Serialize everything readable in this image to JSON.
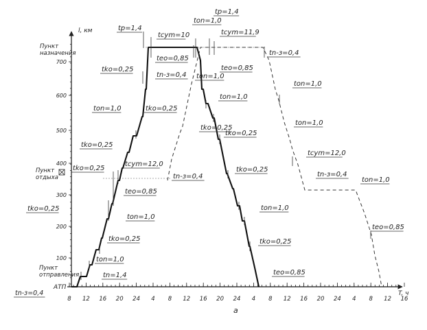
{
  "axes": {
    "y_label": "l, км",
    "x_label": "T, ч",
    "y_ticks": [
      "100",
      "200",
      "300",
      "400",
      "500",
      "600",
      "700"
    ],
    "x_ticks": [
      "8",
      "12",
      "16",
      "20",
      "24",
      "4",
      "8",
      "12",
      "16",
      "20",
      "24",
      "4",
      "8",
      "12",
      "16",
      "20",
      "24",
      "4",
      "8",
      "12",
      "16"
    ]
  },
  "points": {
    "destination": "Пункт назначения",
    "rest": "Пункт отдыха",
    "departure": "Пункт отправления",
    "atp": "АТП"
  },
  "figure_label": "а",
  "labels": [
    {
      "text": "tp=1,4"
    },
    {
      "text": "tcym=10"
    },
    {
      "text": "teo=0,85"
    },
    {
      "text": "tko=0,25"
    },
    {
      "text": "tn-з=0,4"
    },
    {
      "text": "ton=1,0"
    },
    {
      "text": "tko=0,25"
    },
    {
      "text": "tko=0,25"
    },
    {
      "text": "tko=0,25"
    },
    {
      "text": "tcym=12,0"
    },
    {
      "text": "tn-з=0,4"
    },
    {
      "text": "teo=0,85"
    },
    {
      "text": "tko=0,25"
    },
    {
      "text": "ton=1,0"
    },
    {
      "text": "tko=0,25"
    },
    {
      "text": "ton=1,0"
    },
    {
      "text": "tn=1,4"
    },
    {
      "text": "tn-з=0,4"
    },
    {
      "text": "ton=1,0"
    },
    {
      "text": "tp=1,4"
    },
    {
      "text": "tcym=11,9"
    },
    {
      "text": "teo=0,85"
    },
    {
      "text": "tn-з=0,4"
    },
    {
      "text": "ton=1,0"
    },
    {
      "text": "ton=1,0"
    },
    {
      "text": "tko=0,25"
    },
    {
      "text": "tko=0,25"
    },
    {
      "text": "ton=1,0"
    },
    {
      "text": "tko=0,25"
    },
    {
      "text": "teo=0,85"
    },
    {
      "text": "ton=1,0"
    },
    {
      "text": "tko=0,25"
    },
    {
      "text": "ton=1,0"
    },
    {
      "text": "tcym=12,0"
    },
    {
      "text": "tn-з=0,4"
    },
    {
      "text": "ton=1,0"
    },
    {
      "text": "teo=0,85"
    }
  ]
}
